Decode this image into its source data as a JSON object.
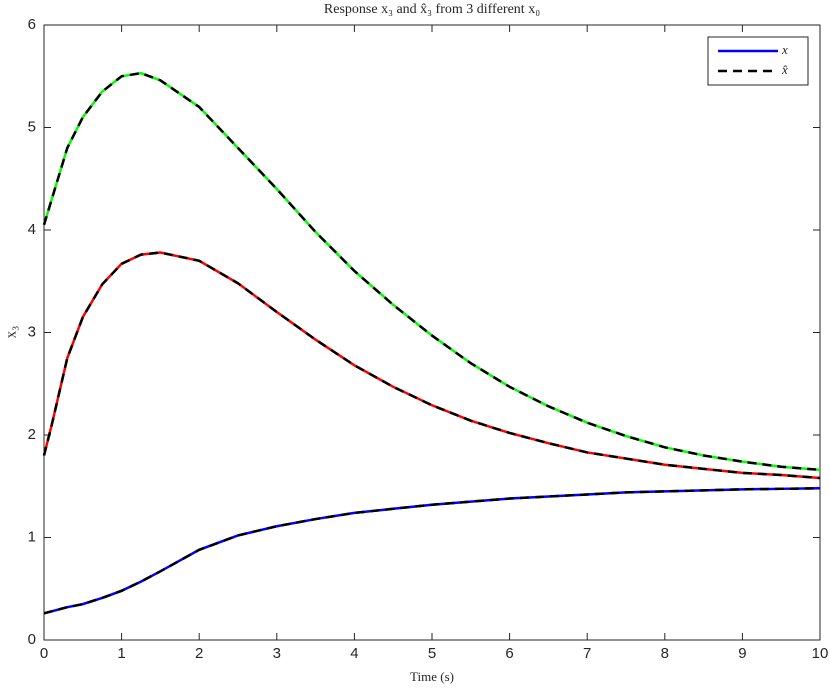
{
  "chart_data": {
    "type": "line",
    "title": "Response x₃ and x̂₃ from 3 different x₀",
    "x_label": "Time (s)",
    "y_label": "x₃",
    "x": [
      0,
      0.1,
      0.3,
      0.5,
      0.75,
      1,
      1.25,
      1.5,
      2,
      2.5,
      3,
      3.5,
      4,
      4.5,
      5,
      5.5,
      6,
      6.5,
      7,
      7.5,
      8,
      8.5,
      9,
      9.5,
      10
    ],
    "series": [
      {
        "name": "x",
        "color": "#0000ff",
        "dashed": false,
        "values": [
          0.26,
          0.28,
          0.32,
          0.35,
          0.41,
          0.48,
          0.57,
          0.67,
          0.88,
          1.02,
          1.11,
          1.18,
          1.24,
          1.28,
          1.32,
          1.35,
          1.38,
          1.4,
          1.42,
          1.44,
          1.45,
          1.46,
          1.47,
          1.475,
          1.48
        ]
      },
      {
        "color": "#ff0000",
        "dashed": false,
        "values": [
          1.8,
          2.1,
          2.75,
          3.15,
          3.47,
          3.67,
          3.76,
          3.78,
          3.7,
          3.48,
          3.2,
          2.93,
          2.68,
          2.47,
          2.29,
          2.14,
          2.02,
          1.92,
          1.83,
          1.77,
          1.71,
          1.67,
          1.63,
          1.61,
          1.58
        ]
      },
      {
        "color": "#00ff00",
        "dashed": false,
        "values": [
          4.05,
          4.3,
          4.8,
          5.1,
          5.35,
          5.5,
          5.53,
          5.46,
          5.2,
          4.8,
          4.4,
          3.98,
          3.6,
          3.27,
          2.97,
          2.7,
          2.47,
          2.28,
          2.12,
          1.99,
          1.88,
          1.8,
          1.74,
          1.69,
          1.66
        ]
      },
      {
        "name": "x̂",
        "color": "#000000",
        "dashed": true,
        "values": [
          0.26,
          0.28,
          0.32,
          0.35,
          0.41,
          0.48,
          0.57,
          0.67,
          0.88,
          1.02,
          1.11,
          1.18,
          1.24,
          1.28,
          1.32,
          1.35,
          1.38,
          1.4,
          1.42,
          1.44,
          1.45,
          1.46,
          1.47,
          1.475,
          1.48
        ]
      },
      {
        "color": "#000000",
        "dashed": true,
        "values": [
          1.8,
          2.1,
          2.75,
          3.15,
          3.47,
          3.67,
          3.76,
          3.78,
          3.7,
          3.48,
          3.2,
          2.93,
          2.68,
          2.47,
          2.29,
          2.14,
          2.02,
          1.92,
          1.83,
          1.77,
          1.71,
          1.67,
          1.63,
          1.61,
          1.58
        ]
      },
      {
        "color": "#000000",
        "dashed": true,
        "values": [
          4.05,
          4.3,
          4.8,
          5.1,
          5.35,
          5.5,
          5.53,
          5.46,
          5.2,
          4.8,
          4.4,
          3.98,
          3.6,
          3.27,
          2.97,
          2.7,
          2.47,
          2.28,
          2.12,
          1.99,
          1.88,
          1.8,
          1.74,
          1.69,
          1.66
        ]
      }
    ],
    "xlim": [
      0,
      10
    ],
    "xticks": [
      0,
      1,
      2,
      3,
      4,
      5,
      6,
      7,
      8,
      9,
      10
    ],
    "ylim": [
      0,
      6
    ],
    "yticks": [
      0,
      1,
      2,
      3,
      4,
      5,
      6
    ],
    "grid": false,
    "legend": "top-right"
  }
}
